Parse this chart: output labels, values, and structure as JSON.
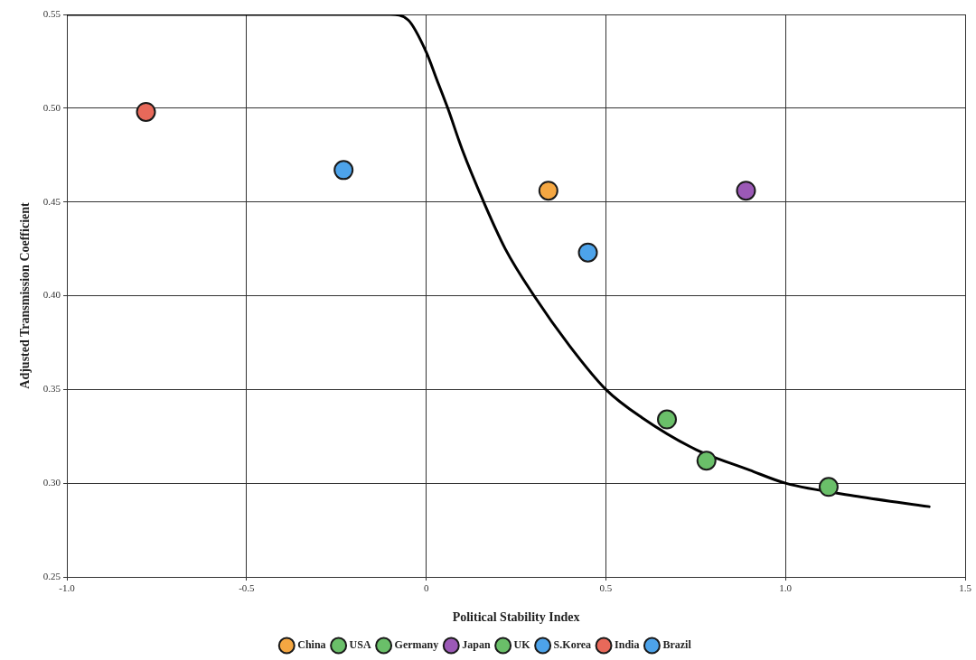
{
  "chart_data": {
    "type": "scatter",
    "xlabel": "Political Stability Index",
    "ylabel": "Adjusted Transmission Coefficient",
    "xlim": [
      -1.0,
      1.5
    ],
    "xticks": [
      {
        "value": -1.0,
        "label": "-1.0"
      },
      -0.5,
      0,
      0.5,
      {
        "value": 1.0,
        "label": "1.0"
      },
      1.5
    ],
    "ylim": [
      0.25,
      0.55
    ],
    "yticks": [
      0.25,
      {
        "value": 0.3,
        "label": "0.30"
      },
      0.35,
      {
        "value": 0.4,
        "label": "0.40"
      },
      0.45,
      {
        "value": 0.5,
        "label": "0.50"
      },
      0.55
    ],
    "grid": true,
    "legend": "bottom",
    "marker": "circle",
    "series": [
      {
        "type": "line",
        "color": "#000000",
        "marker": "none",
        "line_style": "solid",
        "x": [
          -1.0,
          -0.1,
          -0.05,
          0,
          0.03,
          0.06,
          0.1,
          0.16,
          0.22,
          0.3,
          0.4,
          0.5,
          0.6,
          0.75,
          0.9,
          1.0,
          1.2,
          1.4
        ],
        "values": [
          0.55,
          0.55,
          0.547,
          0.53,
          0.515,
          0.5,
          0.478,
          0.45,
          0.425,
          0.4,
          0.373,
          0.35,
          0.335,
          0.318,
          0.307,
          0.3,
          0.293,
          0.2875
        ]
      },
      {
        "name": "China",
        "color": "#f5a742",
        "x": [
          0.34
        ],
        "values": [
          0.456
        ]
      },
      {
        "name": "USA",
        "color": "#6abf69",
        "x": [
          0.67
        ],
        "values": [
          0.334
        ]
      },
      {
        "name": "Germany",
        "color": "#6abf69",
        "x": [
          0.78
        ],
        "values": [
          0.312
        ]
      },
      {
        "name": "Japan",
        "color": "#9b59b6",
        "x": [
          0.89
        ],
        "values": [
          0.456
        ]
      },
      {
        "name": "UK",
        "color": "#6abf69",
        "x": [
          1.12
        ],
        "values": [
          0.298
        ]
      },
      {
        "name": "S.Korea",
        "color": "#4da3ea",
        "x": [
          0.45
        ],
        "values": [
          0.423
        ]
      },
      {
        "name": "India",
        "color": "#e8695a",
        "x": [
          -0.78
        ],
        "values": [
          0.498
        ]
      },
      {
        "name": "Brazil",
        "color": "#4da3ea",
        "x": [
          -0.23
        ],
        "values": [
          0.467
        ]
      }
    ]
  }
}
